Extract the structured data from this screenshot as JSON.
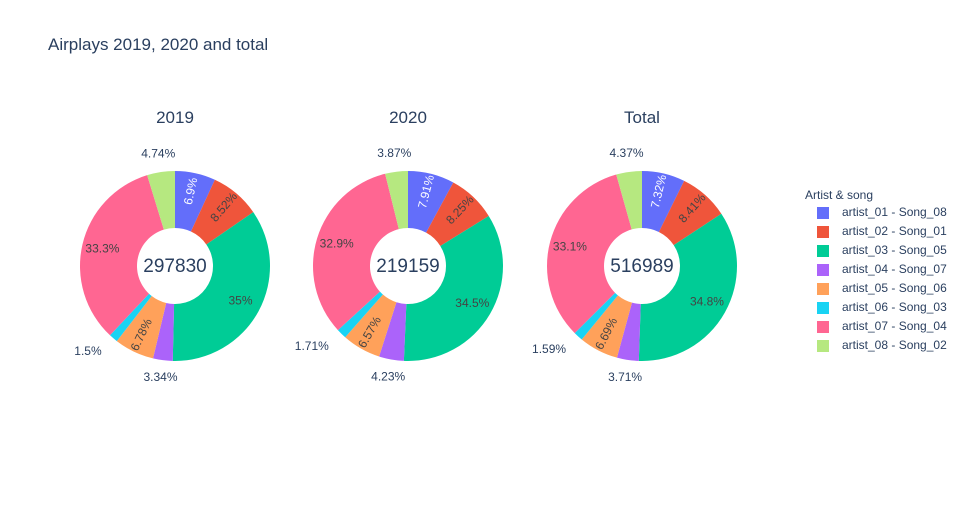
{
  "title": "Airplays 2019, 2020 and total",
  "legend": {
    "title": "Artist & song",
    "placement": "right"
  },
  "chart_data": [
    {
      "type": "pie",
      "title": "2019",
      "center_label": "297830",
      "labels": [
        "artist_01 - Song_08",
        "artist_02 - Song_01",
        "artist_03 - Song_05",
        "artist_04 - Song_07",
        "artist_05 - Song_06",
        "artist_06 - Song_03",
        "artist_07 - Song_04",
        "artist_08 - Song_02"
      ],
      "pct_labels": [
        "6.9%",
        "8.52%",
        "35%",
        "3.34%",
        "6.78%",
        "1.5%",
        "33.3%",
        "4.74%"
      ],
      "values": [
        6.9,
        8.52,
        35.0,
        3.34,
        6.78,
        1.5,
        33.3,
        4.74
      ]
    },
    {
      "type": "pie",
      "title": "2020",
      "center_label": "219159",
      "labels": [
        "artist_01 - Song_08",
        "artist_02 - Song_01",
        "artist_03 - Song_05",
        "artist_04 - Song_07",
        "artist_05 - Song_06",
        "artist_06 - Song_03",
        "artist_07 - Song_04",
        "artist_08 - Song_02"
      ],
      "pct_labels": [
        "7.91%",
        "8.25%",
        "34.5%",
        "4.23%",
        "6.57%",
        "1.71%",
        "32.9%",
        "3.87%"
      ],
      "values": [
        7.91,
        8.25,
        34.5,
        4.23,
        6.57,
        1.71,
        32.9,
        3.87
      ]
    },
    {
      "type": "pie",
      "title": "Total",
      "center_label": "516989",
      "labels": [
        "artist_01 - Song_08",
        "artist_02 - Song_01",
        "artist_03 - Song_05",
        "artist_04 - Song_07",
        "artist_05 - Song_06",
        "artist_06 - Song_03",
        "artist_07 - Song_04",
        "artist_08 - Song_02"
      ],
      "pct_labels": [
        "7.32%",
        "8.41%",
        "34.8%",
        "3.71%",
        "6.69%",
        "1.59%",
        "33.1%",
        "4.37%"
      ],
      "values": [
        7.32,
        8.41,
        34.8,
        3.71,
        6.69,
        1.59,
        33.1,
        4.37
      ]
    }
  ],
  "colors": [
    "#636efa",
    "#EF553B",
    "#00cc96",
    "#ab63fa",
    "#FFA15A",
    "#19d3f3",
    "#FF6692",
    "#B6E880"
  ],
  "label_text_colors": [
    "#ffffff",
    "#444444",
    "#444444",
    "#444444",
    "#444444",
    "#444444",
    "#444444",
    "#444444"
  ]
}
